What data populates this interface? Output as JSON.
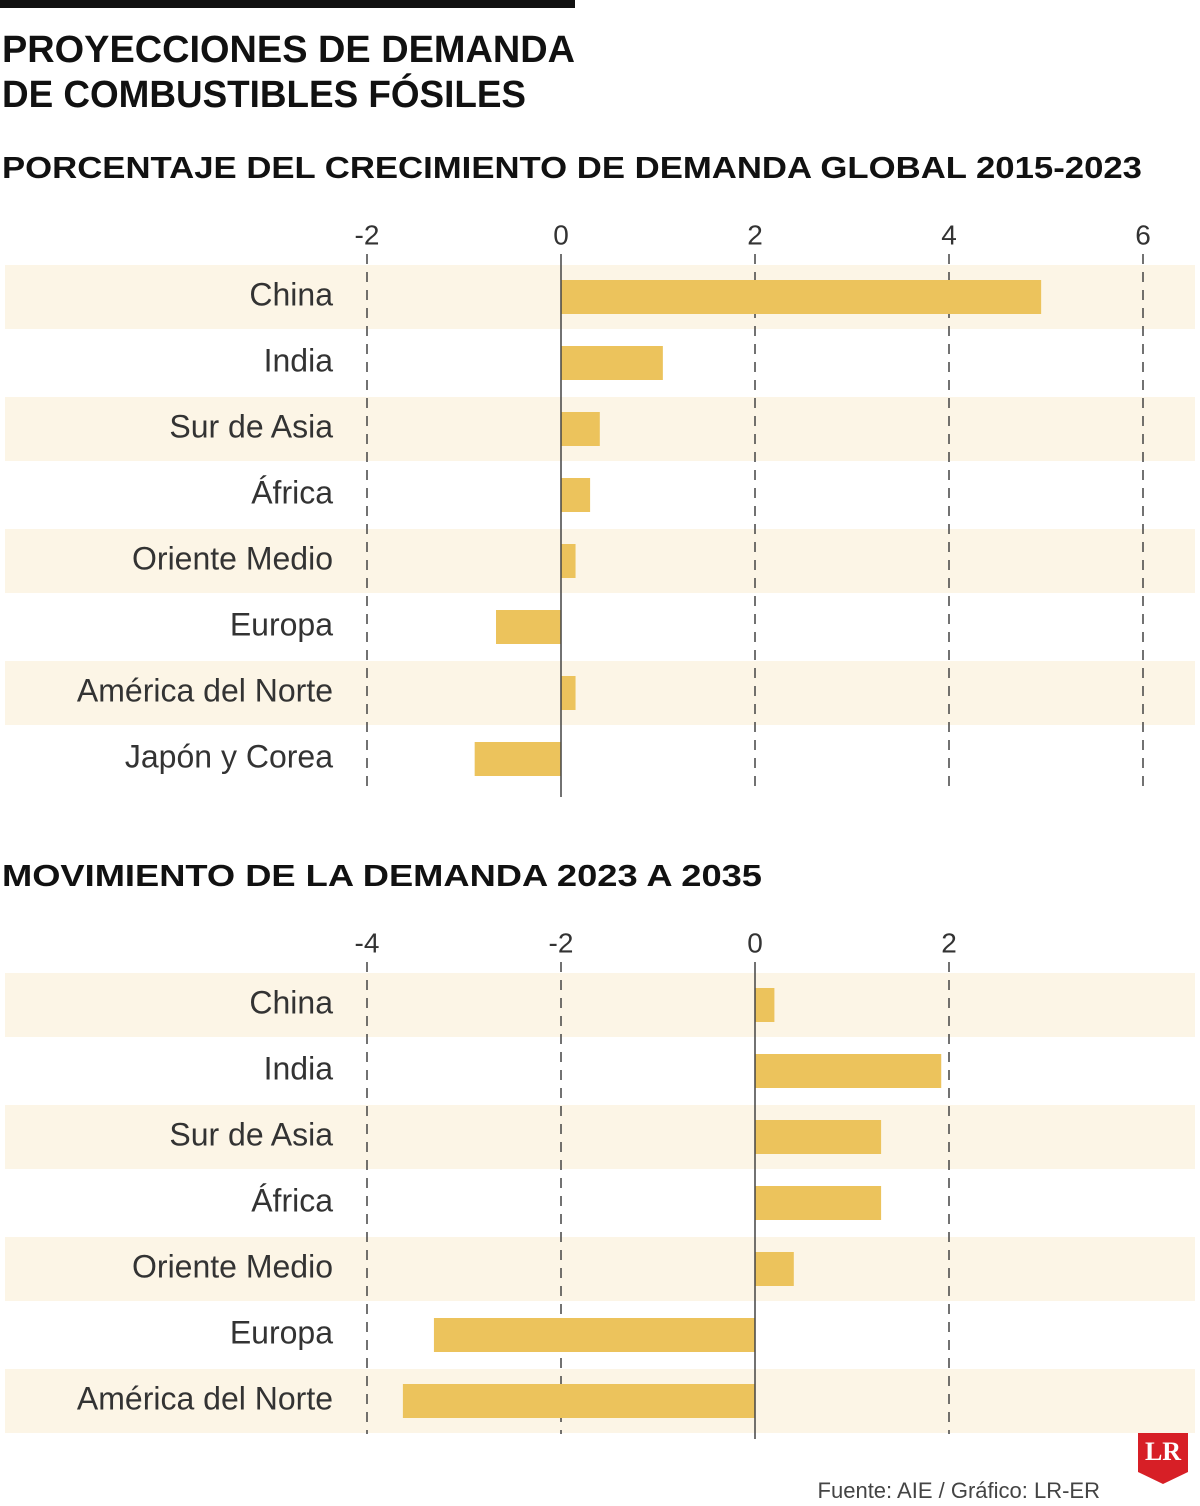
{
  "title": [
    "PROYECCIONES DE DEMANDA",
    "DE COMBUSTIBLES FÓSILES"
  ],
  "source": "Fuente: AIE / Gráfico: LR-ER",
  "logo": "LR",
  "chart_data": [
    {
      "type": "bar",
      "orientation": "horizontal",
      "title": "PORCENTAJE DEL CRECIMIENTO DE DEMANDA GLOBAL 2015-2023",
      "categories": [
        "China",
        "India",
        "Sur de Asia",
        "África",
        "Oriente Medio",
        "Europa",
        "América del Norte",
        "Japón y Corea"
      ],
      "values": [
        4.95,
        1.05,
        0.4,
        0.3,
        0.15,
        -0.67,
        0.15,
        -0.89
      ],
      "color": "#ecc35c",
      "stripe_color": "#fcf5e6",
      "xlim": [
        -2,
        6.5
      ],
      "xticks": [
        -2,
        0,
        2,
        4,
        6
      ],
      "grid": true
    },
    {
      "type": "bar",
      "orientation": "horizontal",
      "title": "MOVIMIENTO DE LA DEMANDA 2023 A 2035",
      "categories": [
        "China",
        "India",
        "Sur de Asia",
        "África",
        "Oriente Medio",
        "Europa",
        "América del Norte"
      ],
      "values": [
        0.2,
        1.92,
        1.3,
        1.3,
        0.4,
        -3.31,
        -3.63
      ],
      "color": "#ecc35c",
      "stripe_color": "#fcf5e6",
      "xlim": [
        -4,
        4.5
      ],
      "xticks": [
        -4,
        -2,
        0,
        2
      ],
      "grid": true
    }
  ]
}
